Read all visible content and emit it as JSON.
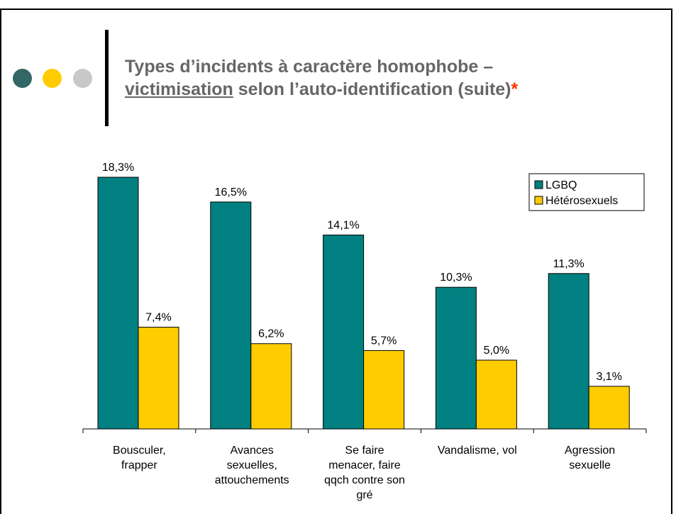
{
  "slide": {
    "title_line1": "Types d’incidents à caractère homophobe –",
    "title_line2_underlined": "victimisation",
    "title_line2_rest": " selon l’auto-identification (suite)",
    "title_asterisk": "*"
  },
  "colors": {
    "lgbq": "#008080",
    "heterosexuels": "#ffcc00",
    "title_text": "#666666",
    "asterisk": "#ff3300",
    "dot_teal": "#336666",
    "dot_yellow": "#ffcc00",
    "dot_gray": "#c8c8c8"
  },
  "chart_data": {
    "type": "bar",
    "categories": [
      [
        "Bousculer,",
        "frapper"
      ],
      [
        "Avances",
        "sexuelles,",
        "attouchements"
      ],
      [
        "Se faire",
        "menacer, faire",
        "qqch contre son",
        "gré"
      ],
      [
        "Vandalisme, vol"
      ],
      [
        "Agression",
        "sexuelle"
      ]
    ],
    "series": [
      {
        "name": "LGBQ",
        "values": [
          18.3,
          16.5,
          14.1,
          10.3,
          11.3
        ],
        "labels": [
          "18,3%",
          "16,5%",
          "14,1%",
          "10,3%",
          "11,3%"
        ]
      },
      {
        "name": "Hétérosexuels",
        "values": [
          7.4,
          6.2,
          5.7,
          5.0,
          3.1
        ],
        "labels": [
          "7,4%",
          "6,2%",
          "5,7%",
          "5,0%",
          "3,1%"
        ]
      }
    ],
    "ylim": [
      0,
      18.3
    ],
    "grid": false,
    "legend_position": "top-right"
  }
}
